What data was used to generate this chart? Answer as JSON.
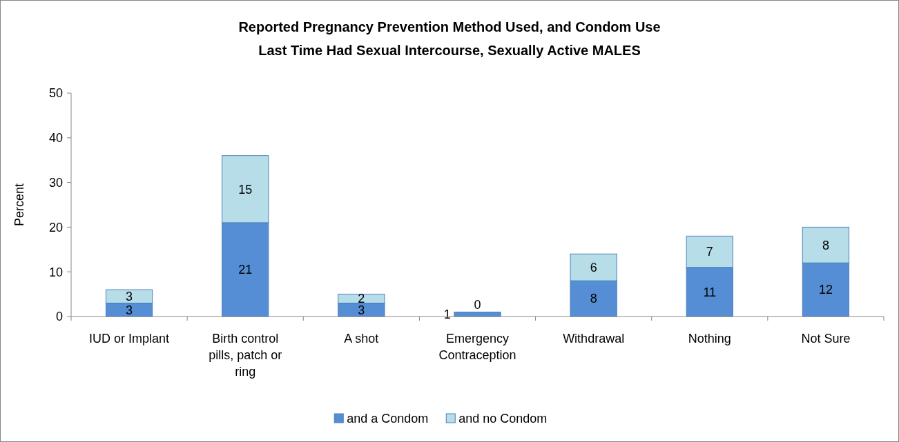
{
  "chart_data": {
    "type": "bar",
    "title": "Reported Pregnancy Prevention Method Used, and Condom Use\nLast Time Had Sexual Intercourse, Sexually Active MALES",
    "ylabel": "Percent",
    "categories": [
      "IUD or Implant",
      "Birth control pills, patch or ring",
      "A shot",
      "Emergency Contraception",
      "Withdrawal",
      "Nothing",
      "Not Sure"
    ],
    "stacked": true,
    "series": [
      {
        "name": "and a Condom",
        "color": "#558ed5",
        "values": [
          3,
          21,
          3,
          1,
          8,
          11,
          12
        ]
      },
      {
        "name": "and no Condom",
        "color": "#b7dee8",
        "values": [
          3,
          15,
          2,
          0,
          6,
          7,
          8
        ]
      }
    ],
    "ylim": [
      0,
      50
    ],
    "yticks": [
      0,
      10,
      20,
      30,
      40,
      50
    ],
    "grid": false,
    "legend": "bottom",
    "data_labels": true
  }
}
